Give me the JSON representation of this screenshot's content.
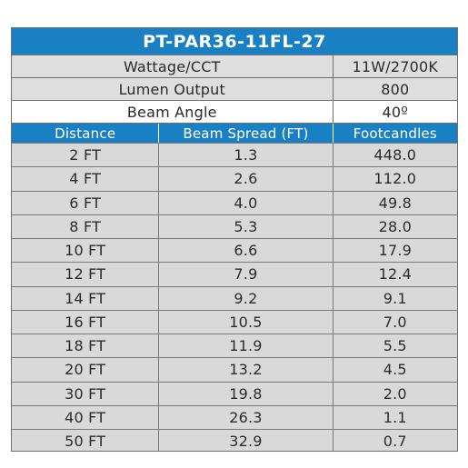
{
  "title": "PT-PAR36-11FL-27",
  "specs": [
    {
      "label": "Wattage/CCT",
      "value": "11W/2700K"
    },
    {
      "label": "Lumen Output",
      "value": "800"
    },
    {
      "label": "Beam Angle",
      "value": "40º"
    }
  ],
  "columns": [
    "Distance",
    "Beam Spread (FT)",
    "Footcandles"
  ],
  "rows": [
    {
      "distance": "2 FT",
      "spread": "1.3",
      "fc": "448.0"
    },
    {
      "distance": "4 FT",
      "spread": "2.6",
      "fc": "112.0"
    },
    {
      "distance": "6 FT",
      "spread": "4.0",
      "fc": "49.8"
    },
    {
      "distance": "8 FT",
      "spread": "5.3",
      "fc": "28.0"
    },
    {
      "distance": "10 FT",
      "spread": "6.6",
      "fc": "17.9"
    },
    {
      "distance": "12 FT",
      "spread": "7.9",
      "fc": "12.4"
    },
    {
      "distance": "14 FT",
      "spread": "9.2",
      "fc": "9.1"
    },
    {
      "distance": "16 FT",
      "spread": "10.5",
      "fc": "7.0"
    },
    {
      "distance": "18 FT",
      "spread": "11.9",
      "fc": "5.5"
    },
    {
      "distance": "20 FT",
      "spread": "13.2",
      "fc": "4.5"
    },
    {
      "distance": "30 FT",
      "spread": "19.8",
      "fc": "2.0"
    },
    {
      "distance": "40 FT",
      "spread": "26.3",
      "fc": "1.1"
    },
    {
      "distance": "50 FT",
      "spread": "32.9",
      "fc": "0.7"
    }
  ],
  "colors": {
    "header_blue": "#1a80c4",
    "row_gray": "#d9d9d9",
    "beam_white": "#ffffff"
  }
}
